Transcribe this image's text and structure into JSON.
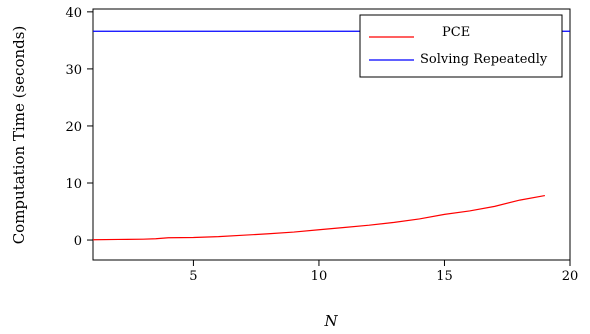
{
  "chart_data": {
    "type": "line",
    "title": "",
    "xlabel": "N",
    "ylabel": "Computation Time (seconds)",
    "xlim": [
      1,
      20
    ],
    "ylim": [
      -3.5,
      40.5
    ],
    "xticks": [
      5,
      10,
      15,
      20
    ],
    "yticks": [
      0,
      10,
      20,
      30,
      40
    ],
    "grid": false,
    "legend_position": "top-right",
    "series": [
      {
        "name": "PCE",
        "color": "#ff0000",
        "x": [
          1,
          2,
          3,
          3.5,
          4,
          5,
          6,
          7,
          8,
          9,
          10,
          11,
          12,
          13,
          14,
          15,
          16,
          17,
          18,
          19
        ],
        "y": [
          0.05,
          0.1,
          0.15,
          0.22,
          0.4,
          0.45,
          0.6,
          0.85,
          1.1,
          1.4,
          1.8,
          2.2,
          2.6,
          3.1,
          3.7,
          4.5,
          5.1,
          5.9,
          7.0,
          7.8
        ]
      },
      {
        "name": "Solving Repeatedly",
        "color": "#0000ff",
        "x": [
          1,
          20
        ],
        "y": [
          36.6,
          36.6
        ]
      }
    ]
  }
}
